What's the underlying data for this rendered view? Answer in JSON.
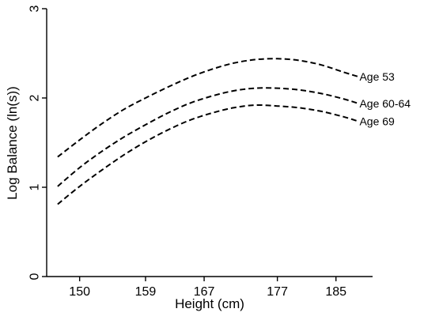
{
  "chart_data": {
    "type": "line",
    "xlabel": "Height (cm)",
    "ylabel": "Log Balance (ln(s))",
    "xlim": [
      145.5,
      190
    ],
    "ylim": [
      0,
      3
    ],
    "xticks": [
      {
        "value": 150,
        "label": "150"
      },
      {
        "value": 159,
        "label": "159"
      },
      {
        "value": 167,
        "label": "167"
      },
      {
        "value": 177,
        "label": "177"
      },
      {
        "value": 185,
        "label": "185"
      }
    ],
    "yticks": [
      {
        "value": 0,
        "label": "0"
      },
      {
        "value": 1,
        "label": "1"
      },
      {
        "value": 2,
        "label": "2"
      },
      {
        "value": 3,
        "label": "3"
      }
    ],
    "grid": false,
    "legend": "none",
    "line_style": "dashed",
    "line_color": "#000000",
    "series": [
      {
        "name": "Age 53",
        "x": [
          147,
          150,
          153,
          156,
          159,
          162,
          165,
          168,
          171,
          174,
          177,
          180,
          183,
          186,
          188
        ],
        "y": [
          1.34,
          1.53,
          1.71,
          1.87,
          2.0,
          2.12,
          2.23,
          2.32,
          2.39,
          2.43,
          2.44,
          2.42,
          2.37,
          2.29,
          2.24
        ]
      },
      {
        "name": "Age 60-64",
        "x": [
          147,
          150,
          153,
          156,
          159,
          162,
          165,
          168,
          171,
          174,
          177,
          180,
          183,
          186,
          188
        ],
        "y": [
          1.01,
          1.22,
          1.4,
          1.56,
          1.7,
          1.83,
          1.94,
          2.02,
          2.08,
          2.11,
          2.11,
          2.09,
          2.05,
          1.99,
          1.94
        ]
      },
      {
        "name": "Age 69",
        "x": [
          147,
          150,
          153,
          156,
          159,
          162,
          165,
          168,
          171,
          174,
          177,
          180,
          183,
          186,
          188
        ],
        "y": [
          0.81,
          1.01,
          1.19,
          1.36,
          1.51,
          1.64,
          1.75,
          1.83,
          1.89,
          1.92,
          1.91,
          1.89,
          1.85,
          1.79,
          1.74
        ]
      }
    ]
  }
}
